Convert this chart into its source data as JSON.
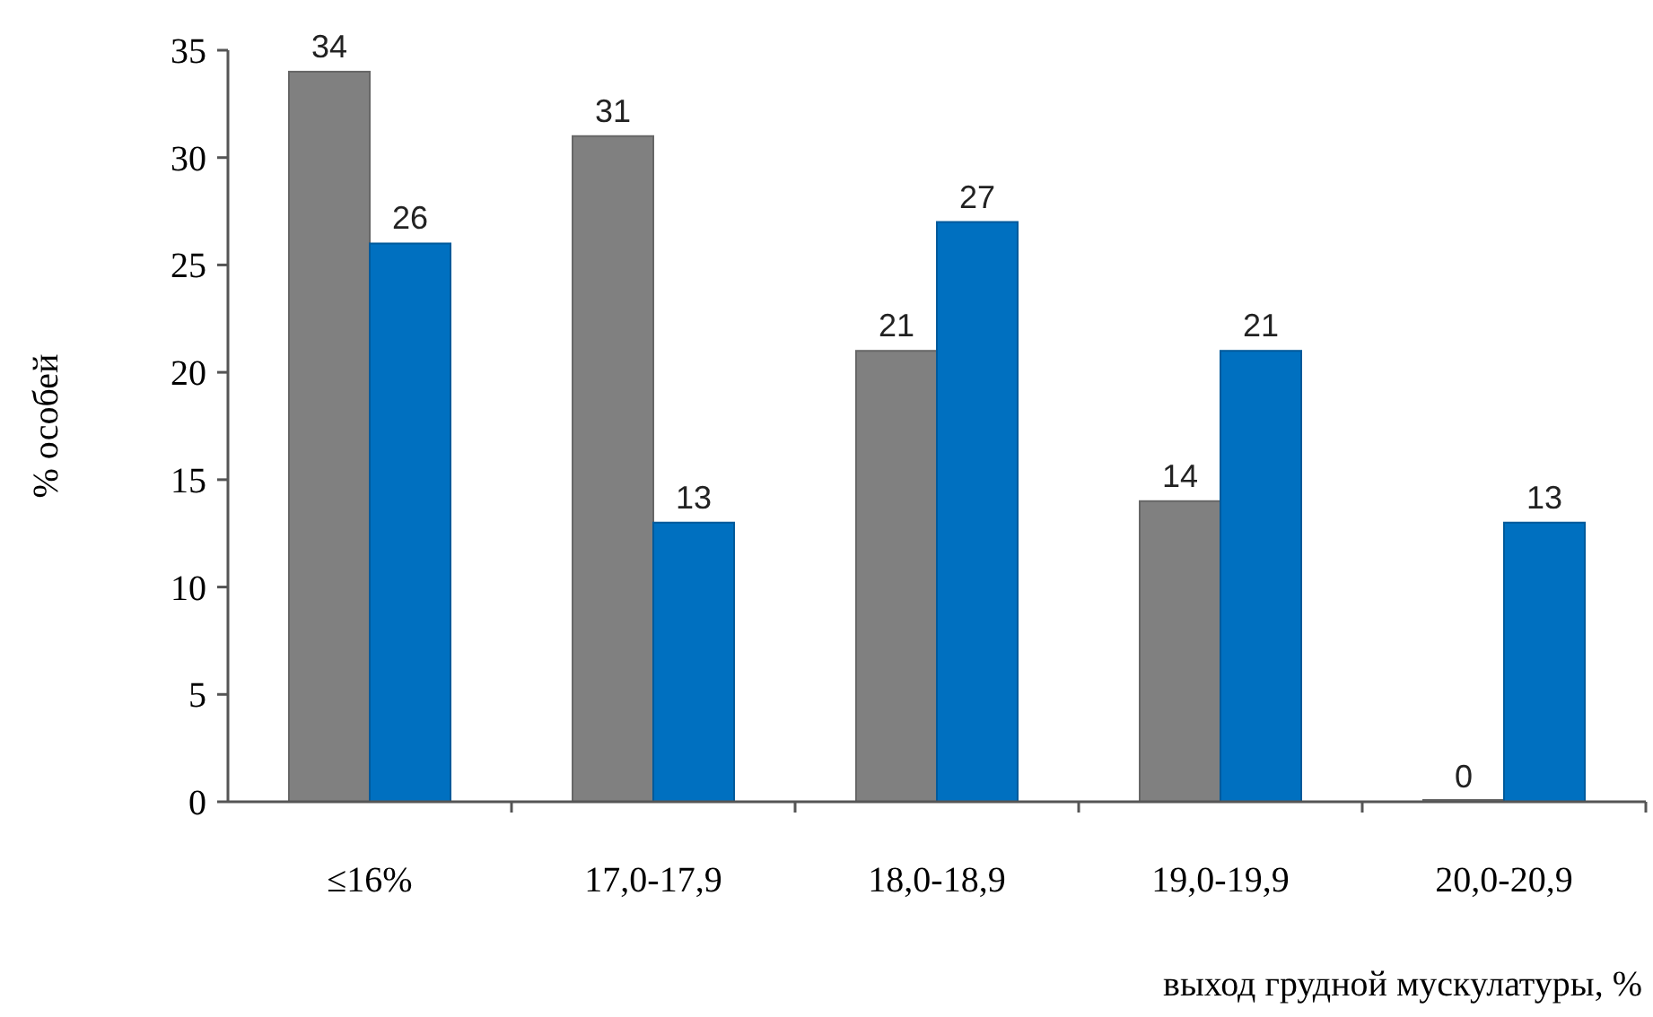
{
  "chart_data": {
    "type": "bar",
    "xlabel": "выход грудной мускулатуры, %",
    "ylabel": "% особей",
    "categories": [
      "≤16%",
      "17,0-17,9",
      "18,0-18,9",
      "19,0-19,9",
      "20,0-20,9"
    ],
    "series": [
      {
        "color": "#808080",
        "values": [
          34,
          31,
          21,
          14,
          0
        ]
      },
      {
        "color": "#0070c0",
        "values": [
          26,
          13,
          27,
          21,
          13
        ]
      }
    ],
    "ylim": [
      0,
      35
    ],
    "yticks": [
      0,
      5,
      10,
      15,
      20,
      25,
      30,
      35
    ],
    "data_labels": true,
    "grid": false
  }
}
